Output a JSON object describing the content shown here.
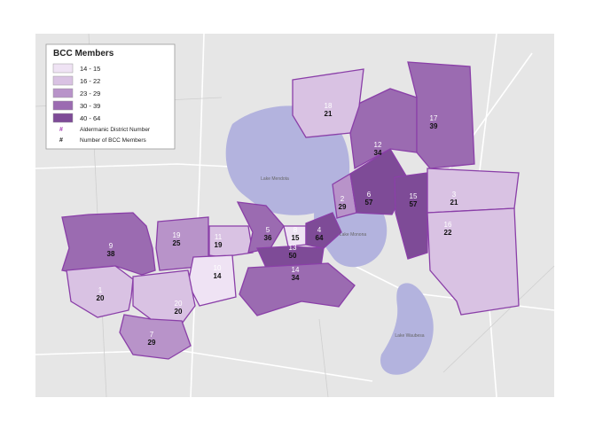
{
  "legend": {
    "title": "BCC Members",
    "classes": [
      {
        "label": "14 - 15",
        "color": "#efe3f4"
      },
      {
        "label": "16 - 22",
        "color": "#d9c2e3"
      },
      {
        "label": "23 - 29",
        "color": "#b893c9"
      },
      {
        "label": "30 - 39",
        "color": "#9b6bb1"
      },
      {
        "label": "40 - 64",
        "color": "#7e4b97"
      }
    ],
    "symbols": [
      {
        "symbol": "#",
        "label": "Aldermanic District Number",
        "color": "#a53bb3"
      },
      {
        "symbol": "#",
        "label": "Number of BCC Members",
        "color": "#222222"
      }
    ]
  },
  "lakes": [
    "Lake Mendota",
    "Lake Monona",
    "Lake Waubesa"
  ],
  "districts": [
    {
      "number": "9",
      "members": 38,
      "color": "#9b6bb1"
    },
    {
      "number": "1",
      "members": 20,
      "color": "#d9c2e3"
    },
    {
      "number": "19",
      "members": 25,
      "color": "#b893c9"
    },
    {
      "number": "11",
      "members": 19,
      "color": "#d9c2e3"
    },
    {
      "number": "10",
      "members": 14,
      "color": "#efe3f4"
    },
    {
      "number": "20",
      "members": 20,
      "color": "#d9c2e3"
    },
    {
      "number": "7",
      "members": 29,
      "color": "#b893c9"
    },
    {
      "number": "5",
      "members": 36,
      "color": "#9b6bb1"
    },
    {
      "number": "8",
      "members": 15,
      "color": "#efe3f4"
    },
    {
      "number": "4",
      "members": 64,
      "color": "#7e4b97"
    },
    {
      "number": "13",
      "members": 50,
      "color": "#7e4b97"
    },
    {
      "number": "14",
      "members": 34,
      "color": "#9b6bb1"
    },
    {
      "number": "2",
      "members": 29,
      "color": "#b893c9"
    },
    {
      "number": "6",
      "members": 57,
      "color": "#7e4b97"
    },
    {
      "number": "12",
      "members": 34,
      "color": "#9b6bb1"
    },
    {
      "number": "18",
      "members": 21,
      "color": "#d9c2e3"
    },
    {
      "number": "17",
      "members": 39,
      "color": "#9b6bb1"
    },
    {
      "number": "15",
      "members": 57,
      "color": "#7e4b97"
    },
    {
      "number": "3",
      "members": 21,
      "color": "#d9c2e3"
    },
    {
      "number": "16",
      "members": 22,
      "color": "#d9c2e3"
    }
  ]
}
